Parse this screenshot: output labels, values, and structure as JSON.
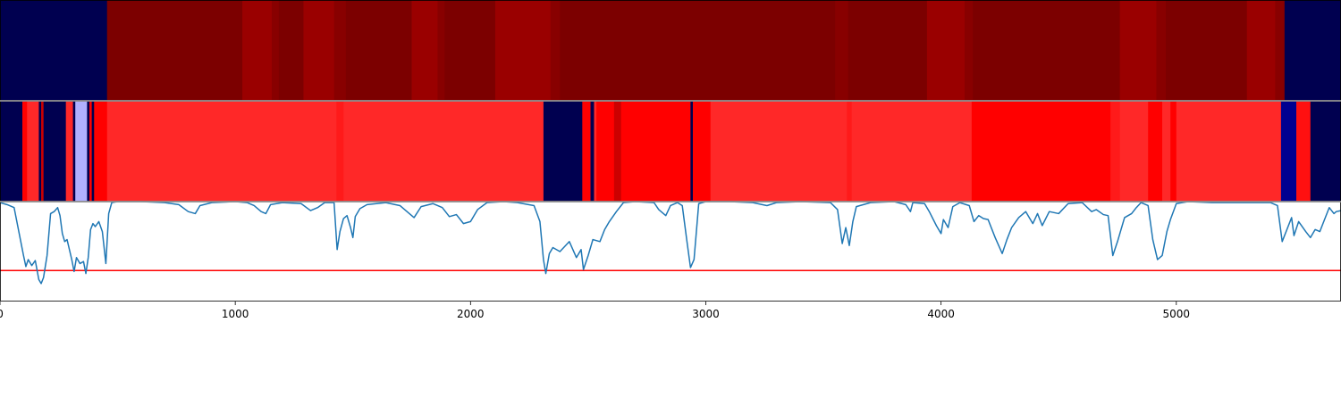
{
  "chart_data": [
    {
      "type": "heatmap",
      "title": "",
      "x_range": [
        0,
        5700
      ],
      "segments": [
        {
          "x0": 0,
          "x1": 455,
          "color": "#000050"
        },
        {
          "x0": 455,
          "x1": 1030,
          "color": "#7c0000"
        },
        {
          "x0": 1030,
          "x1": 1155,
          "color": "#9a0000"
        },
        {
          "x0": 1155,
          "x1": 1185,
          "color": "#880000"
        },
        {
          "x0": 1185,
          "x1": 1290,
          "color": "#7c0000"
        },
        {
          "x0": 1290,
          "x1": 1420,
          "color": "#9a0000"
        },
        {
          "x0": 1420,
          "x1": 1470,
          "color": "#880000"
        },
        {
          "x0": 1470,
          "x1": 1750,
          "color": "#7c0000"
        },
        {
          "x0": 1750,
          "x1": 1860,
          "color": "#9a0000"
        },
        {
          "x0": 1860,
          "x1": 1890,
          "color": "#880000"
        },
        {
          "x0": 1890,
          "x1": 2105,
          "color": "#7c0000"
        },
        {
          "x0": 2105,
          "x1": 2340,
          "color": "#9a0000"
        },
        {
          "x0": 2340,
          "x1": 2380,
          "color": "#880000"
        },
        {
          "x0": 2380,
          "x1": 3550,
          "color": "#7c0000"
        },
        {
          "x0": 3550,
          "x1": 3605,
          "color": "#880000"
        },
        {
          "x0": 3605,
          "x1": 3940,
          "color": "#7c0000"
        },
        {
          "x0": 3940,
          "x1": 4100,
          "color": "#9a0000"
        },
        {
          "x0": 4100,
          "x1": 4135,
          "color": "#880000"
        },
        {
          "x0": 4135,
          "x1": 4760,
          "color": "#7c0000"
        },
        {
          "x0": 4760,
          "x1": 4915,
          "color": "#9a0000"
        },
        {
          "x0": 4915,
          "x1": 4955,
          "color": "#880000"
        },
        {
          "x0": 4955,
          "x1": 5300,
          "color": "#7c0000"
        },
        {
          "x0": 5300,
          "x1": 5420,
          "color": "#9a0000"
        },
        {
          "x0": 5420,
          "x1": 5460,
          "color": "#880000"
        },
        {
          "x0": 5460,
          "x1": 5700,
          "color": "#000050"
        }
      ]
    },
    {
      "type": "heatmap",
      "title": "",
      "x_range": [
        0,
        5700
      ],
      "segments": [
        {
          "x0": 0,
          "x1": 95,
          "color": "#000050"
        },
        {
          "x0": 95,
          "x1": 115,
          "color": "#ff0000"
        },
        {
          "x0": 115,
          "x1": 165,
          "color": "#ff2828"
        },
        {
          "x0": 165,
          "x1": 175,
          "color": "#000050"
        },
        {
          "x0": 175,
          "x1": 185,
          "color": "#cc0000"
        },
        {
          "x0": 185,
          "x1": 280,
          "color": "#000050"
        },
        {
          "x0": 280,
          "x1": 310,
          "color": "#ff2828"
        },
        {
          "x0": 310,
          "x1": 320,
          "color": "#000050"
        },
        {
          "x0": 320,
          "x1": 370,
          "color": "#b0b0ff"
        },
        {
          "x0": 370,
          "x1": 380,
          "color": "#000050"
        },
        {
          "x0": 380,
          "x1": 390,
          "color": "#ff0000"
        },
        {
          "x0": 390,
          "x1": 400,
          "color": "#000050"
        },
        {
          "x0": 400,
          "x1": 455,
          "color": "#ff0000"
        },
        {
          "x0": 455,
          "x1": 1430,
          "color": "#ff2828"
        },
        {
          "x0": 1430,
          "x1": 1460,
          "color": "#ff1a1a"
        },
        {
          "x0": 1460,
          "x1": 2310,
          "color": "#ff2828"
        },
        {
          "x0": 2310,
          "x1": 2475,
          "color": "#000050"
        },
        {
          "x0": 2475,
          "x1": 2510,
          "color": "#ff0000"
        },
        {
          "x0": 2510,
          "x1": 2525,
          "color": "#000050"
        },
        {
          "x0": 2525,
          "x1": 2535,
          "color": "#ff2828"
        },
        {
          "x0": 2535,
          "x1": 2610,
          "color": "#ff0000"
        },
        {
          "x0": 2610,
          "x1": 2640,
          "color": "#cc0000"
        },
        {
          "x0": 2640,
          "x1": 2935,
          "color": "#ff0000"
        },
        {
          "x0": 2935,
          "x1": 2945,
          "color": "#000050"
        },
        {
          "x0": 2945,
          "x1": 3020,
          "color": "#ff0000"
        },
        {
          "x0": 3020,
          "x1": 3600,
          "color": "#ff2828"
        },
        {
          "x0": 3600,
          "x1": 3620,
          "color": "#ff1a1a"
        },
        {
          "x0": 3620,
          "x1": 4130,
          "color": "#ff2828"
        },
        {
          "x0": 4130,
          "x1": 4720,
          "color": "#ff0000"
        },
        {
          "x0": 4720,
          "x1": 4760,
          "color": "#ff1a1a"
        },
        {
          "x0": 4760,
          "x1": 4880,
          "color": "#ff2828"
        },
        {
          "x0": 4880,
          "x1": 4940,
          "color": "#ff0000"
        },
        {
          "x0": 4940,
          "x1": 4975,
          "color": "#ff2828"
        },
        {
          "x0": 4975,
          "x1": 5000,
          "color": "#ff0000"
        },
        {
          "x0": 5000,
          "x1": 5445,
          "color": "#ff2828"
        },
        {
          "x0": 5445,
          "x1": 5510,
          "color": "#000090"
        },
        {
          "x0": 5510,
          "x1": 5570,
          "color": "#ff1010"
        },
        {
          "x0": 5570,
          "x1": 5700,
          "color": "#000050"
        }
      ]
    },
    {
      "type": "line",
      "title": "",
      "xlabel": "",
      "ylabel": "",
      "xlim": [
        0,
        5700
      ],
      "ylim": [
        0,
        1
      ],
      "xticks": [
        0,
        1000,
        2000,
        3000,
        4000,
        5000
      ],
      "threshold": {
        "value": 0.31,
        "color": "#ff0000"
      },
      "series": [
        {
          "color": "#1f77b4",
          "points": [
            [
              0,
              0.99
            ],
            [
              30,
              0.97
            ],
            [
              60,
              0.94
            ],
            [
              80,
              0.7
            ],
            [
              100,
              0.46
            ],
            [
              110,
              0.35
            ],
            [
              120,
              0.42
            ],
            [
              135,
              0.36
            ],
            [
              150,
              0.41
            ],
            [
              165,
              0.22
            ],
            [
              175,
              0.18
            ],
            [
              185,
              0.24
            ],
            [
              200,
              0.46
            ],
            [
              215,
              0.88
            ],
            [
              230,
              0.9
            ],
            [
              245,
              0.94
            ],
            [
              255,
              0.86
            ],
            [
              265,
              0.68
            ],
            [
              275,
              0.6
            ],
            [
              285,
              0.62
            ],
            [
              295,
              0.52
            ],
            [
              305,
              0.42
            ],
            [
              315,
              0.3
            ],
            [
              325,
              0.44
            ],
            [
              340,
              0.38
            ],
            [
              355,
              0.4
            ],
            [
              365,
              0.28
            ],
            [
              375,
              0.44
            ],
            [
              385,
              0.72
            ],
            [
              395,
              0.78
            ],
            [
              405,
              0.75
            ],
            [
              420,
              0.8
            ],
            [
              435,
              0.7
            ],
            [
              450,
              0.38
            ],
            [
              462,
              0.88
            ],
            [
              475,
              0.99
            ],
            [
              500,
              1
            ],
            [
              600,
              1
            ],
            [
              700,
              0.99
            ],
            [
              760,
              0.97
            ],
            [
              800,
              0.9
            ],
            [
              830,
              0.88
            ],
            [
              850,
              0.96
            ],
            [
              900,
              0.99
            ],
            [
              1000,
              1
            ],
            [
              1050,
              0.99
            ],
            [
              1080,
              0.96
            ],
            [
              1110,
              0.9
            ],
            [
              1130,
              0.88
            ],
            [
              1150,
              0.97
            ],
            [
              1200,
              0.99
            ],
            [
              1280,
              0.98
            ],
            [
              1320,
              0.91
            ],
            [
              1350,
              0.94
            ],
            [
              1380,
              0.99
            ],
            [
              1420,
              0.99
            ],
            [
              1433,
              0.52
            ],
            [
              1445,
              0.7
            ],
            [
              1460,
              0.83
            ],
            [
              1475,
              0.86
            ],
            [
              1490,
              0.74
            ],
            [
              1500,
              0.64
            ],
            [
              1510,
              0.85
            ],
            [
              1530,
              0.93
            ],
            [
              1560,
              0.97
            ],
            [
              1640,
              0.99
            ],
            [
              1700,
              0.96
            ],
            [
              1740,
              0.88
            ],
            [
              1760,
              0.84
            ],
            [
              1790,
              0.95
            ],
            [
              1840,
              0.98
            ],
            [
              1880,
              0.94
            ],
            [
              1910,
              0.85
            ],
            [
              1940,
              0.87
            ],
            [
              1970,
              0.78
            ],
            [
              2000,
              0.8
            ],
            [
              2030,
              0.92
            ],
            [
              2070,
              0.99
            ],
            [
              2140,
              1
            ],
            [
              2200,
              0.99
            ],
            [
              2270,
              0.96
            ],
            [
              2295,
              0.8
            ],
            [
              2310,
              0.42
            ],
            [
              2320,
              0.28
            ],
            [
              2335,
              0.48
            ],
            [
              2350,
              0.54
            ],
            [
              2380,
              0.5
            ],
            [
              2420,
              0.6
            ],
            [
              2450,
              0.44
            ],
            [
              2470,
              0.52
            ],
            [
              2480,
              0.32
            ],
            [
              2500,
              0.46
            ],
            [
              2520,
              0.62
            ],
            [
              2550,
              0.6
            ],
            [
              2570,
              0.72
            ],
            [
              2590,
              0.8
            ],
            [
              2620,
              0.9
            ],
            [
              2650,
              0.99
            ],
            [
              2700,
              1
            ],
            [
              2780,
              0.99
            ],
            [
              2800,
              0.92
            ],
            [
              2830,
              0.86
            ],
            [
              2850,
              0.96
            ],
            [
              2880,
              0.99
            ],
            [
              2900,
              0.96
            ],
            [
              2920,
              0.6
            ],
            [
              2935,
              0.34
            ],
            [
              2950,
              0.42
            ],
            [
              2970,
              0.98
            ],
            [
              3000,
              1
            ],
            [
              3100,
              1
            ],
            [
              3200,
              0.99
            ],
            [
              3260,
              0.96
            ],
            [
              3300,
              0.99
            ],
            [
              3400,
              1
            ],
            [
              3530,
              0.99
            ],
            [
              3560,
              0.92
            ],
            [
              3580,
              0.58
            ],
            [
              3595,
              0.74
            ],
            [
              3610,
              0.56
            ],
            [
              3625,
              0.8
            ],
            [
              3640,
              0.95
            ],
            [
              3700,
              0.99
            ],
            [
              3800,
              1
            ],
            [
              3850,
              0.97
            ],
            [
              3870,
              0.9
            ],
            [
              3880,
              0.99
            ],
            [
              3930,
              0.98
            ],
            [
              3950,
              0.9
            ],
            [
              3980,
              0.76
            ],
            [
              4000,
              0.68
            ],
            [
              4010,
              0.82
            ],
            [
              4030,
              0.74
            ],
            [
              4050,
              0.95
            ],
            [
              4080,
              0.99
            ],
            [
              4120,
              0.96
            ],
            [
              4140,
              0.8
            ],
            [
              4160,
              0.86
            ],
            [
              4180,
              0.83
            ],
            [
              4200,
              0.82
            ],
            [
              4230,
              0.64
            ],
            [
              4260,
              0.48
            ],
            [
              4280,
              0.62
            ],
            [
              4300,
              0.74
            ],
            [
              4330,
              0.84
            ],
            [
              4360,
              0.9
            ],
            [
              4390,
              0.78
            ],
            [
              4410,
              0.88
            ],
            [
              4430,
              0.76
            ],
            [
              4460,
              0.9
            ],
            [
              4500,
              0.88
            ],
            [
              4540,
              0.98
            ],
            [
              4600,
              0.99
            ],
            [
              4640,
              0.9
            ],
            [
              4660,
              0.92
            ],
            [
              4690,
              0.87
            ],
            [
              4710,
              0.86
            ],
            [
              4730,
              0.46
            ],
            [
              4750,
              0.6
            ],
            [
              4780,
              0.84
            ],
            [
              4810,
              0.88
            ],
            [
              4830,
              0.94
            ],
            [
              4850,
              0.99
            ],
            [
              4880,
              0.96
            ],
            [
              4900,
              0.62
            ],
            [
              4920,
              0.42
            ],
            [
              4940,
              0.46
            ],
            [
              4960,
              0.7
            ],
            [
              4975,
              0.82
            ],
            [
              5000,
              0.98
            ],
            [
              5050,
              1
            ],
            [
              5150,
              0.99
            ],
            [
              5250,
              0.99
            ],
            [
              5350,
              0.99
            ],
            [
              5400,
              0.99
            ],
            [
              5430,
              0.96
            ],
            [
              5450,
              0.6
            ],
            [
              5470,
              0.72
            ],
            [
              5490,
              0.84
            ],
            [
              5500,
              0.66
            ],
            [
              5520,
              0.8
            ],
            [
              5550,
              0.7
            ],
            [
              5570,
              0.64
            ],
            [
              5590,
              0.72
            ],
            [
              5610,
              0.7
            ],
            [
              5630,
              0.82
            ],
            [
              5650,
              0.94
            ],
            [
              5670,
              0.88
            ],
            [
              5680,
              0.9
            ],
            [
              5700,
              0.91
            ]
          ]
        }
      ]
    }
  ]
}
